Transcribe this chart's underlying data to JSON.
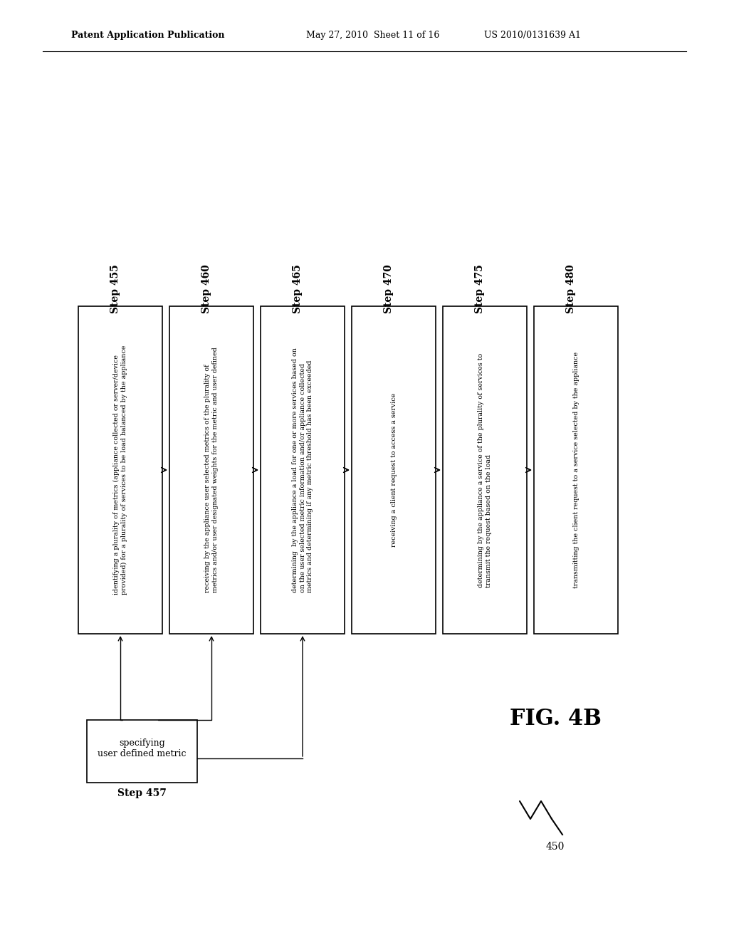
{
  "bg_color": "#ffffff",
  "header_left": "Patent Application Publication",
  "header_mid": "May 27, 2010  Sheet 11 of 16",
  "header_right": "US 2010/0131639 A1",
  "fig_label": "FIG. 4B",
  "diagram_label": "450",
  "steps": [
    {
      "label": "Step 455",
      "text": "identifying a plurality of metrics (appliance collected or server/device\nprovided) for a plurality of services to be load balanced by the appliance"
    },
    {
      "label": "Step 460",
      "text": "receiving by the appliance user selected metrics of the plurality of\nmetrics and/or user designated weights for the metric and user defined"
    },
    {
      "label": "Step 465",
      "text": "determining  by the appliance a load for one or more services based on\non the user selected metric information and/or appliance collected\nmetrics and determining if any metric threshold has been exceeded"
    },
    {
      "label": "Step 470",
      "text": "receiving a client request to access a service"
    },
    {
      "label": "Step 475",
      "text": "determining by the appliance a service of the plurality of services to\ntransmit the request based on the load"
    },
    {
      "label": "Step 480",
      "text": "transmitting the client request to a service selected by the appliance"
    }
  ],
  "side_box": {
    "label": "Step 457",
    "text": "specifying\nuser defined metric"
  }
}
